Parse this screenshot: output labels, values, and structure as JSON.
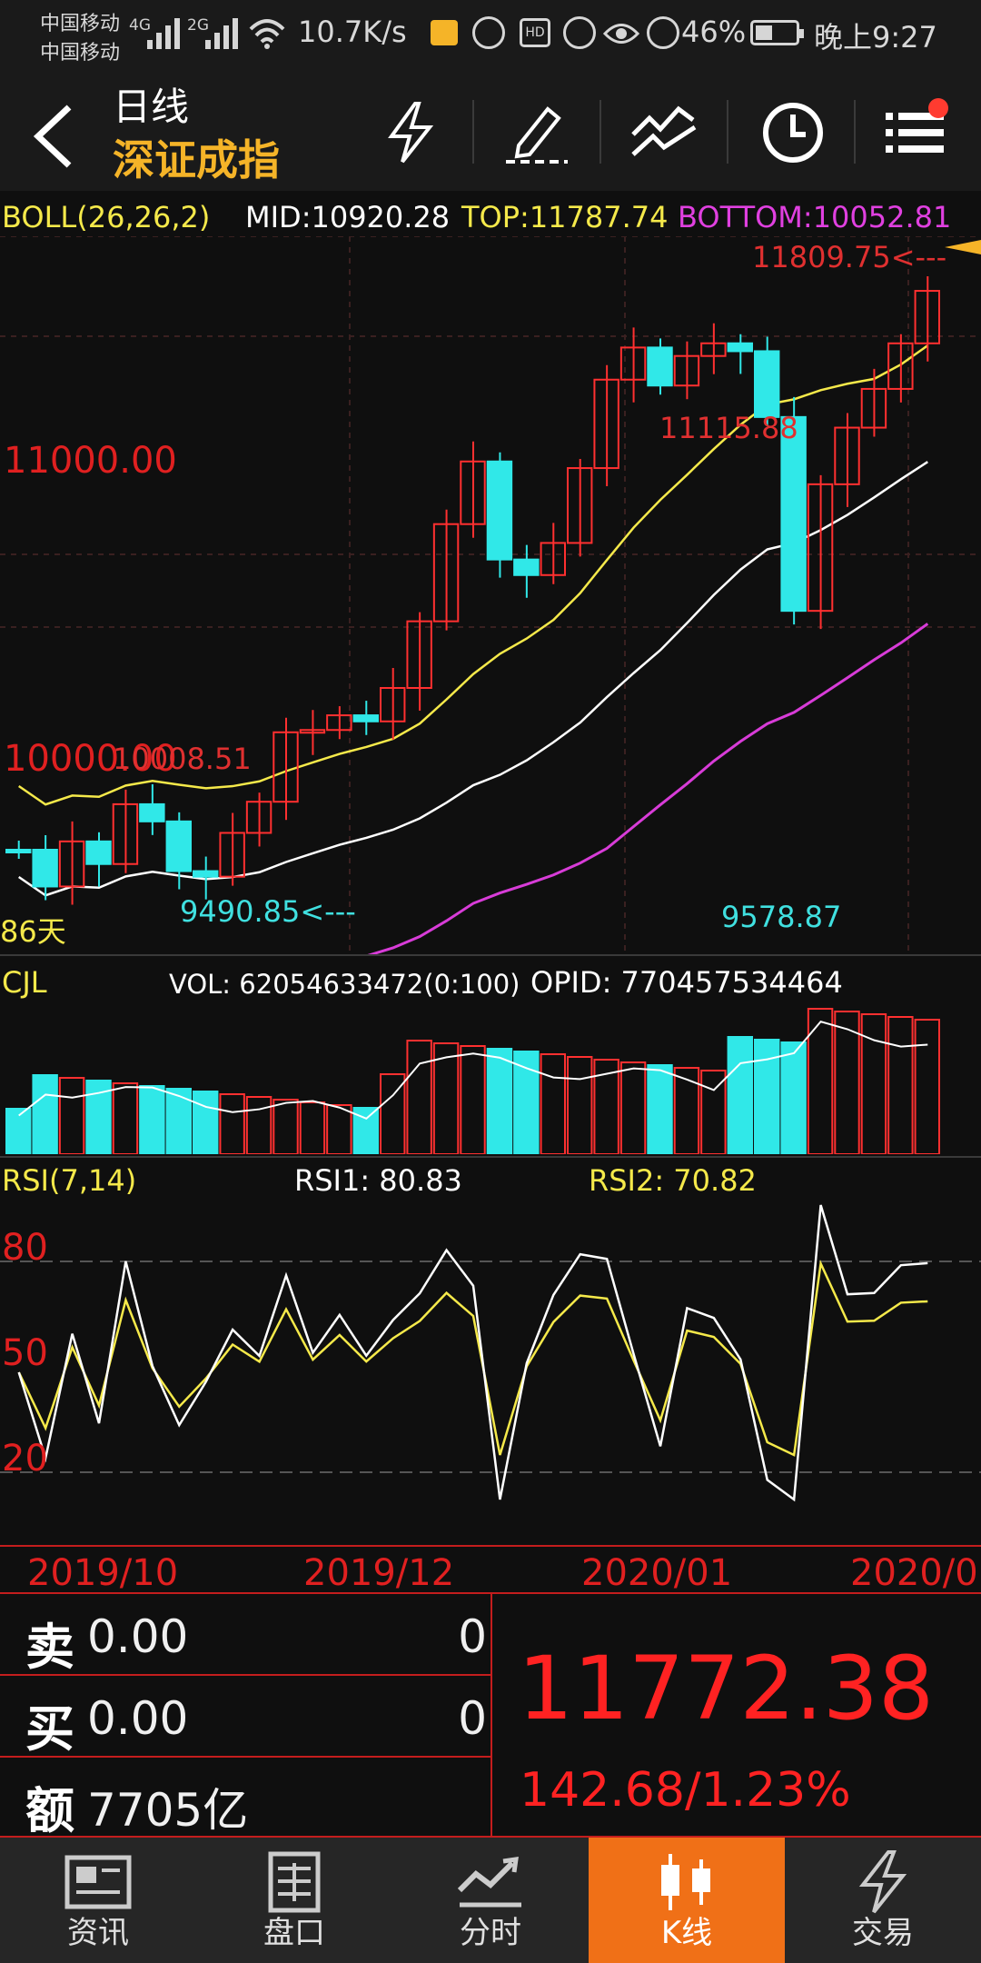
{
  "status": {
    "carrier1": "中国移动",
    "carrier2": "中国移动",
    "net1": "4G",
    "net2": "2G",
    "speed": "10.7K/s",
    "battery": "46%",
    "time": "晚上9:27"
  },
  "header": {
    "period": "日线",
    "name": "深证成指"
  },
  "boll": {
    "title": "BOLL(26,26,2)",
    "mid": "MID:10920.28",
    "top": "TOP:11787.74",
    "bottom": "BOTTOM:10052.81"
  },
  "main_chart": {
    "label_high": "11809.75<---",
    "label_peak": "11115.88",
    "label_low1": "9490.85<---",
    "label_low2": "9578.87",
    "label_left": "10008.51",
    "price_11000": "11000.00",
    "price_10000": "10000.00",
    "days": "86天"
  },
  "cjl": {
    "title": "CJL",
    "vol": "VOL: 62054633472(0:100)",
    "opid": "OPID: 770457534464"
  },
  "rsi": {
    "title": "RSI(7,14)",
    "rsi1": "RSI1: 80.83",
    "rsi2": "RSI2: 70.82",
    "l80": "80",
    "l50": "50",
    "l20": "20"
  },
  "dates": [
    "2019/10",
    "2019/12",
    "2020/01",
    "2020/0"
  ],
  "panel": {
    "sell_k": "卖",
    "sell_v": "0.00",
    "sell_q": "0",
    "buy_k": "买",
    "buy_v": "0.00",
    "buy_q": "0",
    "amt_k": "额",
    "amt_v": "7705亿",
    "price": "11772.38",
    "change": "142.68/1.23%"
  },
  "nav": [
    {
      "label": "资讯"
    },
    {
      "label": "盘口"
    },
    {
      "label": "分时"
    },
    {
      "label": "K线"
    },
    {
      "label": "交易"
    }
  ]
}
